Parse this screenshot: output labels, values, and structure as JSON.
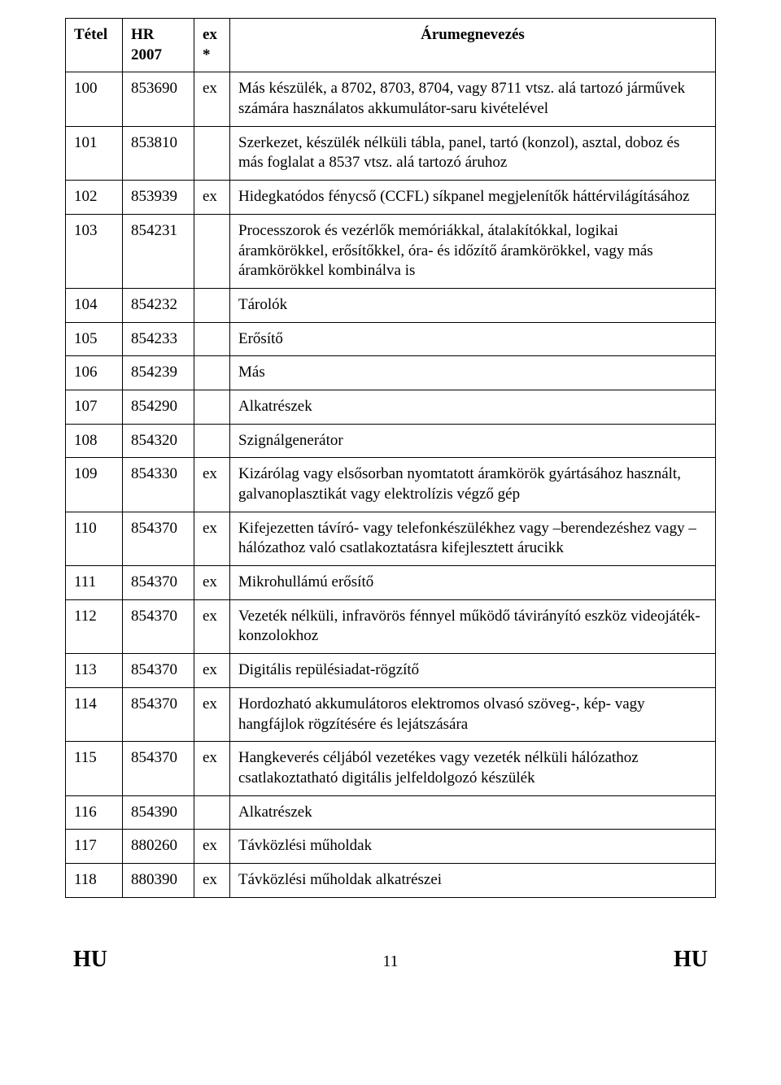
{
  "doc": {
    "columns": [
      {
        "header": "Tétel"
      },
      {
        "header": "HR\n2007"
      },
      {
        "header": "ex\n*"
      },
      {
        "header": "Árumegnevezés"
      }
    ],
    "rows": [
      {
        "tetel": "100",
        "hr": "853690",
        "ex": "ex",
        "aru": "Más készülék, a 8702, 8703, 8704, vagy 8711 vtsz. alá tartozó járművek számára használatos akkumulátor-saru kivételével"
      },
      {
        "tetel": "101",
        "hr": "853810",
        "ex": "",
        "aru": "Szerkezet, készülék nélküli tábla, panel, tartó (konzol), asztal, doboz és más foglalat a 8537 vtsz. alá tartozó áruhoz"
      },
      {
        "tetel": "102",
        "hr": "853939",
        "ex": "ex",
        "aru": "Hidegkatódos fénycső (CCFL) síkpanel megjelenítők háttérvilágításához"
      },
      {
        "tetel": "103",
        "hr": "854231",
        "ex": "",
        "aru": "Processzorok és vezérlők memóriákkal, átalakítókkal, logikai áramkörökkel, erősítőkkel, óra- és időzítő áramkörökkel, vagy más áramkörökkel kombinálva is"
      },
      {
        "tetel": "104",
        "hr": "854232",
        "ex": "",
        "aru": "Tárolók"
      },
      {
        "tetel": "105",
        "hr": "854233",
        "ex": "",
        "aru": "Erősítő"
      },
      {
        "tetel": "106",
        "hr": "854239",
        "ex": "",
        "aru": "Más"
      },
      {
        "tetel": "107",
        "hr": "854290",
        "ex": "",
        "aru": "Alkatrészek"
      },
      {
        "tetel": "108",
        "hr": "854320",
        "ex": "",
        "aru": "Szignálgenerátor"
      },
      {
        "tetel": "109",
        "hr": "854330",
        "ex": "ex",
        "aru": "Kizárólag vagy elsősorban nyomtatott áramkörök gyártásához használt, galvanoplasztikát vagy elektrolízis végző gép"
      },
      {
        "tetel": "110",
        "hr": "854370",
        "ex": "ex",
        "aru": "Kifejezetten távíró- vagy telefonkészülékhez vagy –berendezéshez vagy –hálózathoz való csatlakoztatásra kifejlesztett árucikk"
      },
      {
        "tetel": "111",
        "hr": "854370",
        "ex": "ex",
        "aru": "Mikrohullámú erősítő"
      },
      {
        "tetel": "112",
        "hr": "854370",
        "ex": "ex",
        "aru": "Vezeték nélküli, infravörös fénnyel működő távirányító eszköz videojáték-konzolokhoz"
      },
      {
        "tetel": "113",
        "hr": "854370",
        "ex": "ex",
        "aru": "Digitális repülésiadat-rögzítő"
      },
      {
        "tetel": "114",
        "hr": "854370",
        "ex": "ex",
        "aru": "Hordozható akkumulátoros elektromos olvasó szöveg-, kép- vagy hangfájlok rögzítésére és lejátszására"
      },
      {
        "tetel": "115",
        "hr": "854370",
        "ex": "ex",
        "aru": "Hangkeverés céljából vezetékes vagy vezeték nélküli hálózathoz csatlakoztatható digitális jelfeldolgozó készülék"
      },
      {
        "tetel": "116",
        "hr": "854390",
        "ex": "",
        "aru": "Alkatrészek"
      },
      {
        "tetel": "117",
        "hr": "880260",
        "ex": "ex",
        "aru": "Távközlési műholdak"
      },
      {
        "tetel": "118",
        "hr": "880390",
        "ex": "ex",
        "aru": "Távközlési műholdak alkatrészei"
      }
    ],
    "footer": {
      "lang_left": "HU",
      "lang_right": "HU",
      "page_number": "11"
    },
    "style": {
      "border_weight": "1.5px double",
      "font_family": "Times New Roman",
      "body_font_size": 19,
      "footer_font_size": 28,
      "background": "#ffffff",
      "text_color": "#000000"
    }
  }
}
